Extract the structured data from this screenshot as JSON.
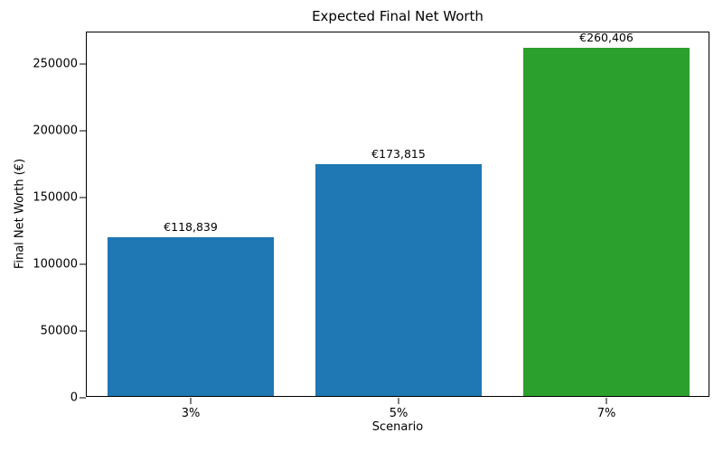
{
  "chart_data": {
    "type": "bar",
    "title": "Expected Final Net Worth",
    "xlabel": "Scenario",
    "ylabel": "Final Net Worth (€)",
    "categories": [
      "3%",
      "5%",
      "7%"
    ],
    "values": [
      118839,
      173815,
      260406
    ],
    "bar_labels": [
      "€118,839",
      "€173,815",
      "€260,406"
    ],
    "bar_colors": [
      "#1f77b4",
      "#1f77b4",
      "#2ca02c"
    ],
    "ylim": [
      0,
      273426
    ],
    "yticks": [
      0,
      50000,
      100000,
      150000,
      200000,
      250000
    ],
    "grid": false,
    "legend": false,
    "bar_width_fraction": 0.8
  }
}
